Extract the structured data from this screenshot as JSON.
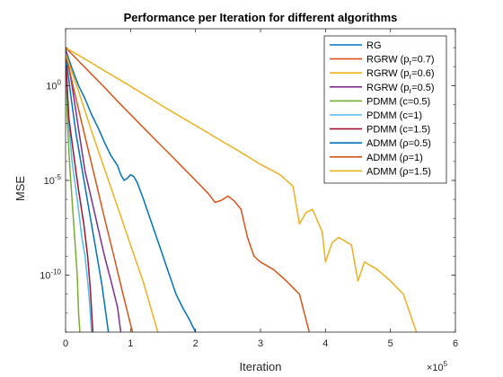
{
  "chart_data": {
    "type": "line",
    "title": "Performance per Iteration for different algorithms",
    "xlabel": "Iteration",
    "ylabel": "MSE",
    "x_exponent_label": "×10",
    "x_exponent_power": "5",
    "x_scale": 100000,
    "xlim": [
      0,
      600000
    ],
    "ylim": [
      1e-13,
      1000.0
    ],
    "y_scale": "log",
    "legend_position": "top-right",
    "grid": false,
    "x_ticks": [
      {
        "value": 0,
        "label": "0"
      },
      {
        "value": 100000,
        "label": "1"
      },
      {
        "value": 200000,
        "label": "2"
      },
      {
        "value": 300000,
        "label": "3"
      },
      {
        "value": 400000,
        "label": "4"
      },
      {
        "value": 500000,
        "label": "5"
      },
      {
        "value": 600000,
        "label": "6"
      }
    ],
    "y_ticks": [
      {
        "value": 1,
        "base": "10",
        "exp": "0"
      },
      {
        "value": 1e-05,
        "base": "10",
        "exp": "-5"
      },
      {
        "value": 1e-10,
        "base": "10",
        "exp": "-10"
      }
    ],
    "series": [
      {
        "name": "RG",
        "legend": {
          "main": "RG"
        },
        "color": "#0072BD",
        "points": [
          [
            0,
            80
          ],
          [
            10000,
            8
          ],
          [
            20000,
            1
          ],
          [
            30000,
            0.2
          ],
          [
            40000,
            0.03
          ],
          [
            50000,
            0.006
          ],
          [
            60000,
            0.001
          ],
          [
            70000,
            0.0002
          ],
          [
            80000,
            6e-05
          ],
          [
            85000,
            2e-05
          ],
          [
            90000,
            1e-05
          ],
          [
            95000,
            1.3e-05
          ],
          [
            100000,
            2e-05
          ],
          [
            105000,
            1.6e-05
          ],
          [
            110000,
            8e-06
          ],
          [
            120000,
            1e-06
          ],
          [
            130000,
            1e-07
          ],
          [
            140000,
            1e-08
          ],
          [
            150000,
            1e-09
          ],
          [
            160000,
            1e-10
          ],
          [
            170000,
            1e-11
          ],
          [
            180000,
            2e-12
          ],
          [
            190000,
            5e-13
          ],
          [
            200000,
            1e-13
          ]
        ]
      },
      {
        "name": "RGRW (pr=0.7)",
        "legend": {
          "main": "RGRW (p",
          "sub": "r",
          "tail": "=0.7)"
        },
        "color": "#D95319",
        "points": [
          [
            0,
            100
          ],
          [
            20000,
            20
          ],
          [
            40000,
            4
          ],
          [
            60000,
            0.8
          ],
          [
            80000,
            0.15
          ],
          [
            100000,
            0.03
          ],
          [
            120000,
            0.006
          ],
          [
            140000,
            0.0012
          ],
          [
            160000,
            0.00025
          ],
          [
            180000,
            5e-05
          ],
          [
            200000,
            1e-05
          ],
          [
            220000,
            2e-06
          ],
          [
            230000,
            7e-07
          ],
          [
            240000,
            9e-07
          ],
          [
            250000,
            1.5e-06
          ],
          [
            260000,
            8e-07
          ],
          [
            270000,
            3e-07
          ],
          [
            280000,
            1e-08
          ],
          [
            290000,
            1e-09
          ],
          [
            300000,
            5e-10
          ],
          [
            320000,
            2e-10
          ],
          [
            340000,
            5e-11
          ],
          [
            360000,
            1e-11
          ],
          [
            375000,
            1e-13
          ]
        ]
      },
      {
        "name": "RGRW (pr=0.6)",
        "legend": {
          "main": "RGRW (p",
          "sub": "r",
          "tail": "=0.6)"
        },
        "color": "#EDB120",
        "points": [
          [
            0,
            100
          ],
          [
            30000,
            25
          ],
          [
            60000,
            6
          ],
          [
            90000,
            1.5
          ],
          [
            120000,
            0.35
          ],
          [
            150000,
            0.08
          ],
          [
            180000,
            0.02
          ],
          [
            210000,
            0.005
          ],
          [
            240000,
            0.0012
          ],
          [
            270000,
            0.0003
          ],
          [
            300000,
            7e-05
          ],
          [
            330000,
            2e-05
          ],
          [
            350000,
            5e-06
          ],
          [
            360000,
            5e-08
          ],
          [
            370000,
            2e-07
          ],
          [
            380000,
            3e-07
          ],
          [
            395000,
            2e-08
          ],
          [
            400000,
            5e-10
          ],
          [
            410000,
            5e-09
          ],
          [
            420000,
            1e-08
          ],
          [
            440000,
            4e-09
          ],
          [
            450000,
            5e-11
          ],
          [
            460000,
            5e-10
          ],
          [
            480000,
            2e-10
          ],
          [
            500000,
            5e-11
          ],
          [
            520000,
            1e-11
          ],
          [
            540000,
            1e-13
          ]
        ]
      },
      {
        "name": "RGRW (pr=0.5)",
        "legend": {
          "main": "RGRW (p",
          "sub": "r",
          "tail": "=0.5)"
        },
        "color": "#7E2F8E",
        "points": [
          [
            0,
            100
          ],
          [
            10000,
            1
          ],
          [
            20000,
            0.005
          ],
          [
            30000,
            3e-05
          ],
          [
            40000,
            1e-06
          ],
          [
            50000,
            3e-08
          ],
          [
            60000,
            1e-09
          ],
          [
            70000,
            5e-11
          ],
          [
            80000,
            2e-12
          ],
          [
            85000,
            1e-13
          ]
        ]
      },
      {
        "name": "PDMM (c=0.5)",
        "legend": {
          "main": "PDMM (c=0.5)"
        },
        "color": "#77AC30",
        "points": [
          [
            0,
            50
          ],
          [
            3000,
            0.01
          ],
          [
            6000,
            0.0001
          ],
          [
            10000,
            1e-06
          ],
          [
            14000,
            1e-08
          ],
          [
            18000,
            1e-10
          ],
          [
            20000,
            1e-12
          ],
          [
            22000,
            1e-13
          ]
        ]
      },
      {
        "name": "PDMM (c=1)",
        "legend": {
          "main": "PDMM (c=1)"
        },
        "color": "#4DBEEE",
        "points": [
          [
            0,
            50
          ],
          [
            5000,
            0.01
          ],
          [
            10000,
            0.0001
          ],
          [
            18000,
            1e-06
          ],
          [
            25000,
            1e-08
          ],
          [
            30000,
            1e-09
          ],
          [
            33000,
            1e-10
          ],
          [
            36000,
            1e-11
          ],
          [
            40000,
            1e-13
          ]
        ]
      },
      {
        "name": "PDMM (c=1.5)",
        "legend": {
          "main": "PDMM (c=1.5)"
        },
        "color": "#A2142F",
        "points": [
          [
            0,
            50
          ],
          [
            5000,
            0.02
          ],
          [
            12000,
            0.0003
          ],
          [
            20000,
            3e-06
          ],
          [
            28000,
            5e-08
          ],
          [
            34000,
            1e-09
          ],
          [
            38000,
            2e-11
          ],
          [
            42000,
            1e-13
          ]
        ]
      },
      {
        "name": "ADMM (ρ=0.5)",
        "legend": {
          "main": "ADMM (ρ=0.5)"
        },
        "color": "#0072BD",
        "points": [
          [
            0,
            50
          ],
          [
            8000,
            0.3
          ],
          [
            16000,
            0.003
          ],
          [
            26000,
            3e-05
          ],
          [
            36000,
            3e-07
          ],
          [
            46000,
            3e-09
          ],
          [
            56000,
            3e-11
          ],
          [
            66000,
            1e-13
          ]
        ]
      },
      {
        "name": "ADMM (ρ=1)",
        "legend": {
          "main": "ADMM (ρ=1)"
        },
        "color": "#D95319",
        "points": [
          [
            0,
            50
          ],
          [
            15000,
            0.3
          ],
          [
            30000,
            0.002
          ],
          [
            45000,
            1.5e-05
          ],
          [
            60000,
            1e-07
          ],
          [
            75000,
            8e-10
          ],
          [
            90000,
            6e-12
          ],
          [
            103000,
            1e-13
          ]
        ]
      },
      {
        "name": "ADMM (ρ=1.5)",
        "legend": {
          "main": "ADMM (ρ=1.5)"
        },
        "color": "#EDB120",
        "points": [
          [
            0,
            50
          ],
          [
            20000,
            0.5
          ],
          [
            40000,
            0.004
          ],
          [
            60000,
            4e-05
          ],
          [
            80000,
            4e-07
          ],
          [
            100000,
            4e-09
          ],
          [
            120000,
            4e-11
          ],
          [
            142000,
            1e-13
          ]
        ]
      }
    ]
  }
}
